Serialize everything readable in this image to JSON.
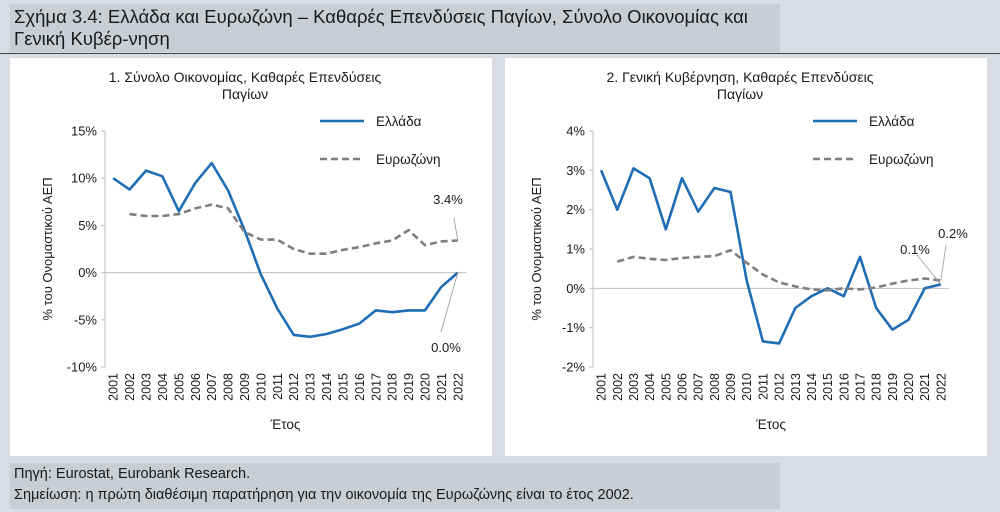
{
  "title": "Σχήμα 3.4: Ελλάδα και Ευρωζώνη – Καθαρές Επενδύσεις Παγίων, Σύνολο Οικονομίας και Γενική Κυβέρ-νηση",
  "source": "Πηγή: Eurostat, Eurobank Research.",
  "note": "Σημείωση: η πρώτη διαθέσιμη παρατήρηση για την οικονομία της Ευρωζώνης είναι το έτος 2002.",
  "colors": {
    "greece": "#1f6db5",
    "eurozone": "#7f7f7f",
    "axis": "#bfbfbf"
  },
  "chart_data": [
    {
      "type": "line",
      "title": "1. Σύνολο Οικονομίας, Καθαρές Επενδύσεις Παγίων",
      "xlabel": "Έτος",
      "ylabel": "% του Ονομαστικού ΑΕΠ",
      "ylim": [
        -10,
        15
      ],
      "yticks": [
        -10,
        -5,
        0,
        5,
        10,
        15
      ],
      "ytick_labels": [
        "-10%",
        "-5%",
        "0%",
        "5%",
        "10%",
        "15%"
      ],
      "x": [
        2001,
        2002,
        2003,
        2004,
        2005,
        2006,
        2007,
        2008,
        2009,
        2010,
        2011,
        2012,
        2013,
        2014,
        2015,
        2016,
        2017,
        2018,
        2019,
        2020,
        2021,
        2022
      ],
      "series": [
        {
          "name": "Ελλάδα",
          "style": "solid",
          "values": [
            10.0,
            8.8,
            10.8,
            10.2,
            6.5,
            9.5,
            11.6,
            8.7,
            4.5,
            -0.2,
            -3.8,
            -6.6,
            -6.8,
            -6.5,
            -6.0,
            -5.4,
            -4.0,
            -4.2,
            -4.0,
            -4.0,
            -1.5,
            0.0
          ]
        },
        {
          "name": "Ευρωζώνη",
          "style": "dashed",
          "values": [
            null,
            6.2,
            6.0,
            6.0,
            6.2,
            6.8,
            7.2,
            6.8,
            4.3,
            3.5,
            3.5,
            2.5,
            2.0,
            2.0,
            2.4,
            2.7,
            3.1,
            3.4,
            4.5,
            2.9,
            3.3,
            3.4
          ]
        }
      ],
      "annotations": [
        "3.4%",
        "0.0%"
      ]
    },
    {
      "type": "line",
      "title": "2. Γενική Κυβέρνηση, Καθαρές Επενδύσεις Παγίων",
      "xlabel": "Έτος",
      "ylabel": "% του Ονομαστικού ΑΕΠ",
      "ylim": [
        -2,
        4
      ],
      "yticks": [
        -2,
        -1,
        0,
        1,
        2,
        3,
        4
      ],
      "ytick_labels": [
        "-2%",
        "-1%",
        "0%",
        "1%",
        "2%",
        "3%",
        "4%"
      ],
      "x": [
        2001,
        2002,
        2003,
        2004,
        2005,
        2006,
        2007,
        2008,
        2009,
        2010,
        2011,
        2012,
        2013,
        2014,
        2015,
        2016,
        2017,
        2018,
        2019,
        2020,
        2021,
        2022
      ],
      "series": [
        {
          "name": "Ελλάδα",
          "style": "solid",
          "values": [
            3.0,
            2.0,
            3.05,
            2.8,
            1.5,
            2.8,
            1.95,
            2.55,
            2.45,
            0.2,
            -1.35,
            -1.4,
            -0.5,
            -0.2,
            0.0,
            -0.2,
            0.8,
            -0.5,
            -1.05,
            -0.8,
            0.0,
            0.1
          ]
        },
        {
          "name": "Ευρωζώνη",
          "style": "dashed",
          "values": [
            null,
            0.68,
            0.8,
            0.75,
            0.72,
            0.77,
            0.8,
            0.82,
            0.97,
            0.65,
            0.35,
            0.15,
            0.05,
            -0.03,
            -0.05,
            0.0,
            -0.03,
            0.02,
            0.12,
            0.2,
            0.25,
            0.2
          ]
        }
      ],
      "annotations": [
        "0.1%",
        "0.2%"
      ]
    }
  ]
}
